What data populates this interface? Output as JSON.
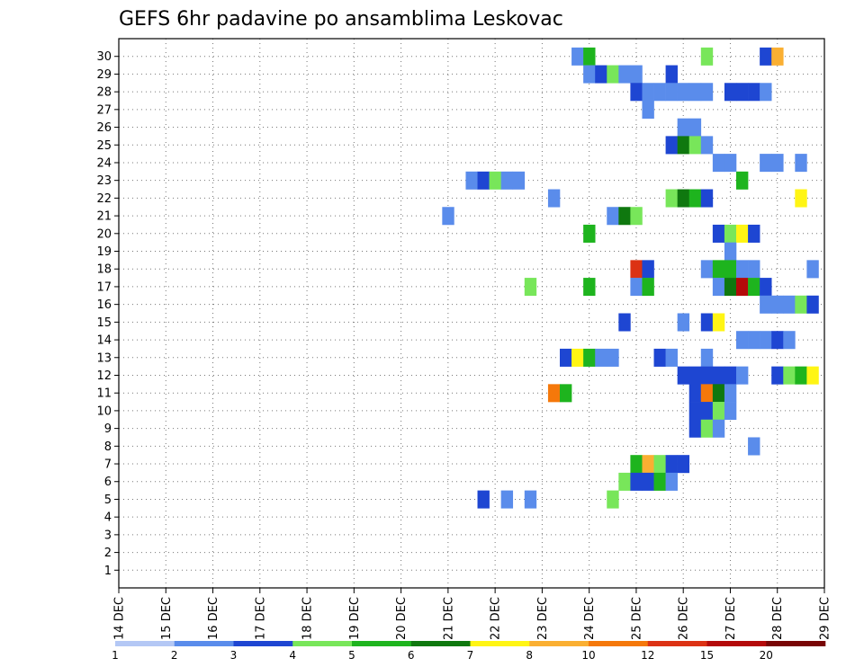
{
  "chart_data": {
    "type": "heatmap",
    "title": "GEFS 6hr padavine po ansamblima Leskovac",
    "x_ticks": [
      "14 DEC",
      "15 DEC",
      "16 DEC",
      "17 DEC",
      "18 DEC",
      "19 DEC",
      "20 DEC",
      "21 DEC",
      "22 DEC",
      "23 DEC",
      "24 DEC",
      "25 DEC",
      "26 DEC",
      "27 DEC",
      "28 DEC",
      "29 DEC"
    ],
    "y_ticks": [
      "1",
      "2",
      "3",
      "4",
      "5",
      "6",
      "7",
      "8",
      "9",
      "10",
      "11",
      "12",
      "13",
      "14",
      "15",
      "16",
      "17",
      "18",
      "19",
      "20",
      "21",
      "22",
      "23",
      "24",
      "25",
      "26",
      "27",
      "28",
      "29",
      "30"
    ],
    "grid": true,
    "legend_placement": "bottom",
    "color_scale": {
      "colors": [
        "#B4C8F5",
        "#5A8CEB",
        "#1E46D2",
        "#78E65A",
        "#1EB41E",
        "#0F780F",
        "#FFF514",
        "#FAAF32",
        "#F5780A",
        "#DC3214",
        "#B40A0A",
        "#780505"
      ],
      "labels": [
        "1",
        "2",
        "3",
        "4",
        "5",
        "6",
        "7",
        "8",
        "10",
        "12",
        "15",
        "20"
      ]
    },
    "cells": [
      [
        30,
        23.75,
        1
      ],
      [
        30,
        24,
        4
      ],
      [
        30,
        26.5,
        3
      ],
      [
        30,
        27.75,
        2
      ],
      [
        30,
        28,
        7
      ],
      [
        29,
        24,
        1
      ],
      [
        29,
        24.25,
        2
      ],
      [
        29,
        24.5,
        3
      ],
      [
        29,
        24.75,
        1
      ],
      [
        29,
        25,
        1
      ],
      [
        29,
        25.75,
        2
      ],
      [
        28,
        25,
        2
      ],
      [
        28,
        25.25,
        1
      ],
      [
        28,
        25.5,
        1
      ],
      [
        28,
        25.75,
        1
      ],
      [
        28,
        26,
        1
      ],
      [
        28,
        26.25,
        1
      ],
      [
        28,
        26.5,
        1
      ],
      [
        28,
        27,
        2
      ],
      [
        28,
        27.25,
        2
      ],
      [
        28,
        27.5,
        2
      ],
      [
        28,
        27.75,
        1
      ],
      [
        27,
        25.25,
        1
      ],
      [
        26,
        26,
        1
      ],
      [
        26,
        26.25,
        1
      ],
      [
        25,
        25.75,
        2
      ],
      [
        25,
        26,
        5
      ],
      [
        25,
        26.25,
        3
      ],
      [
        25,
        26.5,
        1
      ],
      [
        24,
        26.75,
        1
      ],
      [
        24,
        27,
        1
      ],
      [
        24,
        27.75,
        1
      ],
      [
        24,
        28,
        1
      ],
      [
        24,
        28.5,
        1
      ],
      [
        23,
        21.5,
        1
      ],
      [
        23,
        21.75,
        2
      ],
      [
        23,
        22,
        3
      ],
      [
        23,
        22.25,
        1
      ],
      [
        23,
        22.5,
        1
      ],
      [
        23,
        27.25,
        4
      ],
      [
        22,
        23.25,
        1
      ],
      [
        22,
        25.75,
        3
      ],
      [
        22,
        26,
        5
      ],
      [
        22,
        26.25,
        4
      ],
      [
        22,
        26.5,
        2
      ],
      [
        22,
        28.5,
        6
      ],
      [
        21,
        21,
        1
      ],
      [
        21,
        24.5,
        1
      ],
      [
        21,
        24.75,
        5
      ],
      [
        21,
        25,
        3
      ],
      [
        20,
        24,
        4
      ],
      [
        20,
        26.75,
        2
      ],
      [
        20,
        27,
        3
      ],
      [
        20,
        27.25,
        6
      ],
      [
        20,
        27.5,
        2
      ],
      [
        19,
        27,
        1
      ],
      [
        18,
        25,
        9
      ],
      [
        18,
        25.25,
        2
      ],
      [
        18,
        26.5,
        1
      ],
      [
        18,
        26.75,
        4
      ],
      [
        18,
        27,
        4
      ],
      [
        18,
        27.25,
        1
      ],
      [
        18,
        27.5,
        1
      ],
      [
        18,
        28.75,
        1
      ],
      [
        17,
        22.75,
        3
      ],
      [
        17,
        24,
        4
      ],
      [
        17,
        25,
        1
      ],
      [
        17,
        25.25,
        4
      ],
      [
        17,
        26.75,
        1
      ],
      [
        17,
        27,
        5
      ],
      [
        17,
        27.25,
        10
      ],
      [
        17,
        27.5,
        4
      ],
      [
        17,
        27.75,
        2
      ],
      [
        16,
        27.75,
        1
      ],
      [
        16,
        28,
        1
      ],
      [
        16,
        28.25,
        1
      ],
      [
        16,
        28.5,
        3
      ],
      [
        16,
        28.75,
        2
      ],
      [
        15,
        24.75,
        2
      ],
      [
        15,
        26,
        1
      ],
      [
        15,
        26.5,
        2
      ],
      [
        15,
        26.75,
        6
      ],
      [
        14,
        27.25,
        1
      ],
      [
        14,
        27.5,
        1
      ],
      [
        14,
        27.75,
        1
      ],
      [
        14,
        28,
        2
      ],
      [
        14,
        28.25,
        1
      ],
      [
        13,
        23.5,
        2
      ],
      [
        13,
        23.75,
        6
      ],
      [
        13,
        24,
        4
      ],
      [
        13,
        24.25,
        1
      ],
      [
        13,
        24.5,
        1
      ],
      [
        13,
        25.5,
        2
      ],
      [
        13,
        25.75,
        1
      ],
      [
        13,
        26.5,
        1
      ],
      [
        12,
        26,
        2
      ],
      [
        12,
        26.25,
        2
      ],
      [
        12,
        26.5,
        2
      ],
      [
        12,
        26.75,
        2
      ],
      [
        12,
        27,
        2
      ],
      [
        12,
        27.25,
        1
      ],
      [
        12,
        28,
        2
      ],
      [
        12,
        28.25,
        3
      ],
      [
        12,
        28.5,
        4
      ],
      [
        12,
        28.75,
        6
      ],
      [
        11,
        23.25,
        8
      ],
      [
        11,
        23.5,
        4
      ],
      [
        11,
        26.25,
        2
      ],
      [
        11,
        26.5,
        8
      ],
      [
        11,
        26.75,
        5
      ],
      [
        11,
        27,
        1
      ],
      [
        10,
        26.25,
        2
      ],
      [
        10,
        26.5,
        2
      ],
      [
        10,
        26.75,
        3
      ],
      [
        10,
        27,
        1
      ],
      [
        9,
        26.25,
        2
      ],
      [
        9,
        26.5,
        3
      ],
      [
        9,
        26.75,
        1
      ],
      [
        8,
        27.5,
        1
      ],
      [
        7,
        25,
        4
      ],
      [
        7,
        25.25,
        7
      ],
      [
        7,
        25.5,
        3
      ],
      [
        7,
        25.75,
        2
      ],
      [
        7,
        26,
        2
      ],
      [
        6,
        24.75,
        3
      ],
      [
        6,
        25,
        2
      ],
      [
        6,
        25.25,
        2
      ],
      [
        6,
        25.5,
        4
      ],
      [
        6,
        25.75,
        1
      ],
      [
        5,
        21.75,
        2
      ],
      [
        5,
        22.25,
        1
      ],
      [
        5,
        22.75,
        1
      ],
      [
        5,
        24.5,
        3
      ]
    ]
  }
}
